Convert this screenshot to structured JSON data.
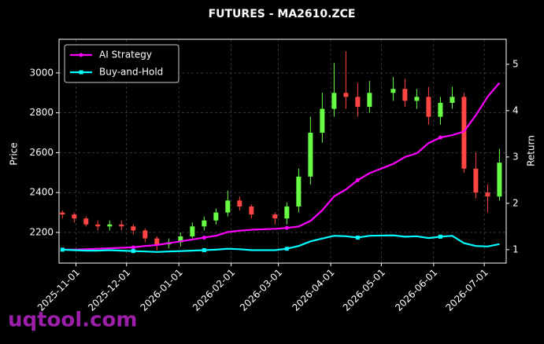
{
  "chart_data": {
    "type": "candlestick",
    "title": "FUTURES - MA2610.ZCE",
    "ylabel": "Price",
    "y2label": "Return",
    "watermark": "uqtool.com",
    "x": [
      "2025-10-24",
      "2025-10-31",
      "2025-11-07",
      "2025-11-14",
      "2025-11-21",
      "2025-11-28",
      "2025-12-05",
      "2025-12-12",
      "2025-12-19",
      "2025-12-26",
      "2026-01-02",
      "2026-01-09",
      "2026-01-16",
      "2026-01-23",
      "2026-01-30",
      "2026-02-06",
      "2026-02-13",
      "2026-02-27",
      "2026-03-06",
      "2026-03-13",
      "2026-03-20",
      "2026-03-27",
      "2026-04-03",
      "2026-04-10",
      "2026-04-17",
      "2026-04-24",
      "2026-05-08",
      "2026-05-15",
      "2026-05-22",
      "2026-05-29",
      "2026-06-05",
      "2026-06-12",
      "2026-06-19",
      "2026-06-26",
      "2026-07-03",
      "2026-07-10"
    ],
    "open": [
      2300,
      2290,
      2270,
      2240,
      2230,
      2240,
      2230,
      2210,
      2170,
      2140,
      2150,
      2180,
      2230,
      2260,
      2300,
      2360,
      2330,
      2290,
      2270,
      2330,
      2480,
      2700,
      2820,
      2900,
      2880,
      2830,
      2900,
      2920,
      2860,
      2880,
      2780,
      2850,
      2880,
      2520,
      2400,
      2380
    ],
    "high": [
      2310,
      2300,
      2280,
      2260,
      2260,
      2260,
      2240,
      2220,
      2180,
      2170,
      2200,
      2250,
      2280,
      2320,
      2410,
      2380,
      2340,
      2300,
      2350,
      2520,
      2780,
      2900,
      3050,
      3110,
      2950,
      2960,
      2980,
      2970,
      2920,
      2930,
      2880,
      2930,
      2900,
      2600,
      2440,
      2620
    ],
    "low": [
      2270,
      2250,
      2230,
      2210,
      2210,
      2210,
      2190,
      2150,
      2110,
      2120,
      2130,
      2170,
      2210,
      2240,
      2280,
      2310,
      2270,
      2240,
      2240,
      2300,
      2440,
      2650,
      2780,
      2820,
      2780,
      2800,
      2860,
      2830,
      2820,
      2740,
      2740,
      2820,
      2500,
      2370,
      2300,
      2360
    ],
    "close": [
      2290,
      2270,
      2240,
      2230,
      2240,
      2230,
      2210,
      2170,
      2140,
      2150,
      2180,
      2230,
      2260,
      2300,
      2360,
      2330,
      2290,
      2270,
      2330,
      2480,
      2700,
      2820,
      2900,
      2880,
      2830,
      2900,
      2920,
      2860,
      2880,
      2780,
      2850,
      2880,
      2520,
      2400,
      2380,
      2550
    ],
    "up_color": "#66ff44",
    "down_color": "#ff4444",
    "series": [
      {
        "name": "AI Strategy",
        "color": "#ff00ff",
        "axis": "y2",
        "marker": "circle",
        "values": [
          1.0,
          1.0,
          1.01,
          1.02,
          1.03,
          1.04,
          1.05,
          1.08,
          1.1,
          1.14,
          1.18,
          1.22,
          1.26,
          1.3,
          1.38,
          1.41,
          1.43,
          1.45,
          1.47,
          1.5,
          1.62,
          1.85,
          2.15,
          2.3,
          2.5,
          2.65,
          2.85,
          3.0,
          3.08,
          3.3,
          3.42,
          3.47,
          3.55,
          3.9,
          4.3,
          4.6
        ]
      },
      {
        "name": "Buy-and-Hold",
        "color": "#00ffff",
        "axis": "y2",
        "marker": "square",
        "values": [
          1.0,
          0.99,
          0.98,
          0.98,
          0.99,
          0.98,
          0.97,
          0.96,
          0.95,
          0.96,
          0.97,
          0.98,
          0.99,
          1.0,
          1.02,
          1.01,
          0.99,
          0.99,
          1.02,
          1.08,
          1.18,
          1.24,
          1.3,
          1.29,
          1.26,
          1.3,
          1.31,
          1.28,
          1.29,
          1.25,
          1.28,
          1.3,
          1.14,
          1.08,
          1.07,
          1.12
        ]
      }
    ],
    "xlim": [
      "2025-10-22",
      "2026-07-14"
    ],
    "xticks": [
      "2025-11-01",
      "2025-12-01",
      "2026-01-01",
      "2026-02-01",
      "2026-03-01",
      "2026-04-01",
      "2026-05-01",
      "2026-06-01",
      "2026-07-01"
    ],
    "ylim": [
      2046,
      3169
    ],
    "yticks": [
      2200,
      2400,
      2600,
      2800,
      3000
    ],
    "y2lim": [
      0.71,
      5.54
    ],
    "y2ticks": [
      1,
      2,
      3,
      4,
      5
    ],
    "grid": true,
    "legend": "upper left"
  }
}
